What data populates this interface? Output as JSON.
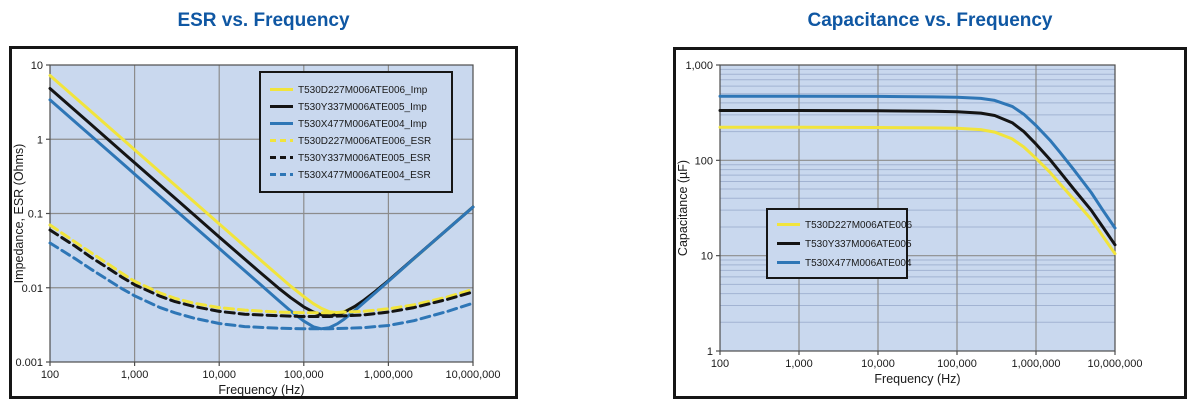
{
  "colors": {
    "title_blue": "#0f57a3",
    "plot_bg": "#c9d8ee",
    "grid_major": "#8c8c8c",
    "grid_minor": "#a2b3d2",
    "axis_line": "#4d4d4d",
    "panel_border": "#161616",
    "text": "#1a1a1a",
    "yellow": "#f1e43c",
    "black": "#141414",
    "blue": "#2e76b6"
  },
  "chart_data": [
    {
      "type": "line",
      "title": "ESR vs. Frequency",
      "xlabel": "Frequency (Hz)",
      "ylabel": "Impedance, ESR (Ohms)",
      "x_scale": "log",
      "y_scale": "log",
      "xlim": [
        100,
        10000000
      ],
      "ylim": [
        0.001,
        10
      ],
      "x_ticks": {
        "values": [
          100,
          1000,
          10000,
          100000,
          1000000,
          10000000
        ],
        "labels": [
          "100",
          "1,000",
          "10,000",
          "100,000",
          "1,000,000",
          "10,000,000"
        ]
      },
      "y_ticks": {
        "values": [
          10,
          1,
          0.1,
          0.01,
          0.001
        ],
        "labels": [
          "10",
          "1",
          "0.1",
          "0.01",
          "0.001"
        ]
      },
      "grid": {
        "major": true,
        "minor_y": false
      },
      "legend_position": "top-right",
      "series": [
        {
          "name": "T530D227M006ATE006_Imp",
          "color": "yellow",
          "line": "solid",
          "points": [
            [
              100,
              7.23
            ],
            [
              300,
              2.41
            ],
            [
              1000,
              0.723
            ],
            [
              3000,
              0.241
            ],
            [
              10000,
              0.0724
            ],
            [
              30000,
              0.0242
            ],
            [
              50000,
              0.0146
            ],
            [
              70000,
              0.0105
            ],
            [
              100000,
              0.0076
            ],
            [
              130000,
              0.0061
            ],
            [
              160000,
              0.0053
            ],
            [
              200000,
              0.00475
            ],
            [
              250000,
              0.0046
            ],
            [
              300000,
              0.00477
            ],
            [
              400000,
              0.00554
            ],
            [
              500000,
              0.00656
            ],
            [
              700000,
              0.00883
            ],
            [
              1000000,
              0.01241
            ],
            [
              2000000,
              0.02457
            ],
            [
              5000000,
              0.0613
            ],
            [
              10000000,
              0.1222
            ]
          ]
        },
        {
          "name": "T530Y337M006ATE005_Imp",
          "color": "black",
          "line": "solid",
          "points": [
            [
              100,
              4.82
            ],
            [
              300,
              1.61
            ],
            [
              1000,
              0.482
            ],
            [
              3000,
              0.161
            ],
            [
              10000,
              0.0482
            ],
            [
              30000,
              0.0163
            ],
            [
              50000,
              0.00996
            ],
            [
              70000,
              0.00735
            ],
            [
              100000,
              0.00553
            ],
            [
              130000,
              0.0047
            ],
            [
              160000,
              0.00433
            ],
            [
              200000,
              0.0042
            ],
            [
              250000,
              0.00435
            ],
            [
              300000,
              0.00468
            ],
            [
              400000,
              0.00559
            ],
            [
              500000,
              0.00665
            ],
            [
              700000,
              0.00893
            ],
            [
              1000000,
              0.0125
            ],
            [
              2000000,
              0.02488
            ],
            [
              5000000,
              0.0612
            ],
            [
              10000000,
              0.1222
            ]
          ]
        },
        {
          "name": "T530X477M006ATE004_Imp",
          "color": "blue",
          "line": "solid",
          "points": [
            [
              100,
              3.39
            ],
            [
              300,
              1.13
            ],
            [
              1000,
              0.339
            ],
            [
              3000,
              0.113
            ],
            [
              10000,
              0.0339
            ],
            [
              30000,
              0.0113
            ],
            [
              50000,
              0.00677
            ],
            [
              70000,
              0.00487
            ],
            [
              100000,
              0.00355
            ],
            [
              130000,
              0.00298
            ],
            [
              160000,
              0.0028
            ],
            [
              200000,
              0.0029
            ],
            [
              250000,
              0.00328
            ],
            [
              300000,
              0.00378
            ],
            [
              400000,
              0.00493
            ],
            [
              500000,
              0.00613
            ],
            [
              700000,
              0.00856
            ],
            [
              1000000,
              0.01224
            ],
            [
              2000000,
              0.02472
            ],
            [
              5000000,
              0.0612
            ],
            [
              10000000,
              0.1221
            ]
          ]
        },
        {
          "name": "T530D227M006ATE006_ESR",
          "color": "yellow",
          "line": "dashed",
          "points": [
            [
              100,
              0.07
            ],
            [
              200,
              0.041
            ],
            [
              300,
              0.03
            ],
            [
              500,
              0.0205
            ],
            [
              700,
              0.0158
            ],
            [
              1000,
              0.0122
            ],
            [
              2000,
              0.0085
            ],
            [
              3000,
              0.0072
            ],
            [
              5000,
              0.0062
            ],
            [
              10000,
              0.0054
            ],
            [
              20000,
              0.005
            ],
            [
              50000,
              0.0047
            ],
            [
              100000,
              0.0046
            ],
            [
              200000,
              0.0046
            ],
            [
              500000,
              0.0048
            ],
            [
              1000000,
              0.0052
            ],
            [
              2000000,
              0.0059
            ],
            [
              5000000,
              0.0075
            ],
            [
              10000000,
              0.0095
            ]
          ]
        },
        {
          "name": "T530Y337M006ATE005_ESR",
          "color": "black",
          "line": "dashed",
          "points": [
            [
              100,
              0.06
            ],
            [
              200,
              0.036
            ],
            [
              300,
              0.026
            ],
            [
              500,
              0.018
            ],
            [
              700,
              0.014
            ],
            [
              1000,
              0.011
            ],
            [
              2000,
              0.0077
            ],
            [
              3000,
              0.0065
            ],
            [
              5000,
              0.0056
            ],
            [
              10000,
              0.0048
            ],
            [
              20000,
              0.0044
            ],
            [
              50000,
              0.0042
            ],
            [
              100000,
              0.0041
            ],
            [
              200000,
              0.0041
            ],
            [
              500000,
              0.0043
            ],
            [
              1000000,
              0.0047
            ],
            [
              2000000,
              0.0054
            ],
            [
              5000000,
              0.007
            ],
            [
              10000000,
              0.0088
            ]
          ]
        },
        {
          "name": "T530X477M006ATE004_ESR",
          "color": "blue",
          "line": "dashed",
          "points": [
            [
              100,
              0.04
            ],
            [
              200,
              0.0245
            ],
            [
              300,
              0.018
            ],
            [
              500,
              0.0125
            ],
            [
              700,
              0.0098
            ],
            [
              1000,
              0.0078
            ],
            [
              2000,
              0.0054
            ],
            [
              3000,
              0.0046
            ],
            [
              5000,
              0.0039
            ],
            [
              10000,
              0.0033
            ],
            [
              20000,
              0.003
            ],
            [
              50000,
              0.00285
            ],
            [
              100000,
              0.0028
            ],
            [
              200000,
              0.0028
            ],
            [
              500000,
              0.0029
            ],
            [
              1000000,
              0.0031
            ],
            [
              2000000,
              0.0036
            ],
            [
              5000000,
              0.0048
            ],
            [
              10000000,
              0.0062
            ]
          ]
        }
      ]
    },
    {
      "type": "line",
      "title": "Capacitance vs. Frequency",
      "xlabel": "Frequency (Hz)",
      "ylabel": "Capacitance (µF)",
      "x_scale": "log",
      "y_scale": "log",
      "xlim": [
        100,
        10000000
      ],
      "ylim": [
        1,
        1000
      ],
      "x_ticks": {
        "values": [
          100,
          1000,
          10000,
          100000,
          1000000,
          10000000
        ],
        "labels": [
          "100",
          "1,000",
          "10,000",
          "100,000",
          "1,000,000",
          "10,000,000"
        ]
      },
      "y_ticks": {
        "values": [
          1000,
          100,
          10,
          1
        ],
        "labels": [
          "1,000",
          "100",
          "10",
          "1"
        ]
      },
      "grid": {
        "major": true,
        "minor_y": true
      },
      "legend_position": "mid-left",
      "series": [
        {
          "name": "T530D227M006ATE006",
          "color": "yellow",
          "line": "solid",
          "points": [
            [
              100,
              222
            ],
            [
              1000,
              222
            ],
            [
              10000,
              221
            ],
            [
              50000,
              219
            ],
            [
              100000,
              217
            ],
            [
              200000,
              210
            ],
            [
              300000,
              198
            ],
            [
              500000,
              168
            ],
            [
              700000,
              138
            ],
            [
              1000000,
              105
            ],
            [
              1500000,
              75
            ],
            [
              2000000,
              57
            ],
            [
              3000000,
              39
            ],
            [
              5000000,
              24
            ],
            [
              7000000,
              16
            ],
            [
              10000000,
              10.5
            ]
          ]
        },
        {
          "name": "T530Y337M006ATE005",
          "color": "black",
          "line": "solid",
          "points": [
            [
              100,
              333
            ],
            [
              1000,
              333
            ],
            [
              10000,
              331
            ],
            [
              50000,
              328
            ],
            [
              100000,
              324
            ],
            [
              200000,
              313
            ],
            [
              300000,
              295
            ],
            [
              500000,
              248
            ],
            [
              700000,
              200
            ],
            [
              1000000,
              148
            ],
            [
              1500000,
              102
            ],
            [
              2000000,
              76
            ],
            [
              3000000,
              50
            ],
            [
              5000000,
              30
            ],
            [
              7000000,
              20
            ],
            [
              10000000,
              13
            ]
          ]
        },
        {
          "name": "T530X477M006ATE004",
          "color": "blue",
          "line": "solid",
          "points": [
            [
              100,
              470
            ],
            [
              1000,
              470
            ],
            [
              10000,
              468
            ],
            [
              50000,
              463
            ],
            [
              100000,
              458
            ],
            [
              200000,
              446
            ],
            [
              300000,
              425
            ],
            [
              500000,
              368
            ],
            [
              700000,
              305
            ],
            [
              1000000,
              232
            ],
            [
              1500000,
              163
            ],
            [
              2000000,
              122
            ],
            [
              3000000,
              80
            ],
            [
              5000000,
              46
            ],
            [
              7000000,
              30
            ],
            [
              10000000,
              19.5
            ]
          ]
        }
      ]
    }
  ]
}
